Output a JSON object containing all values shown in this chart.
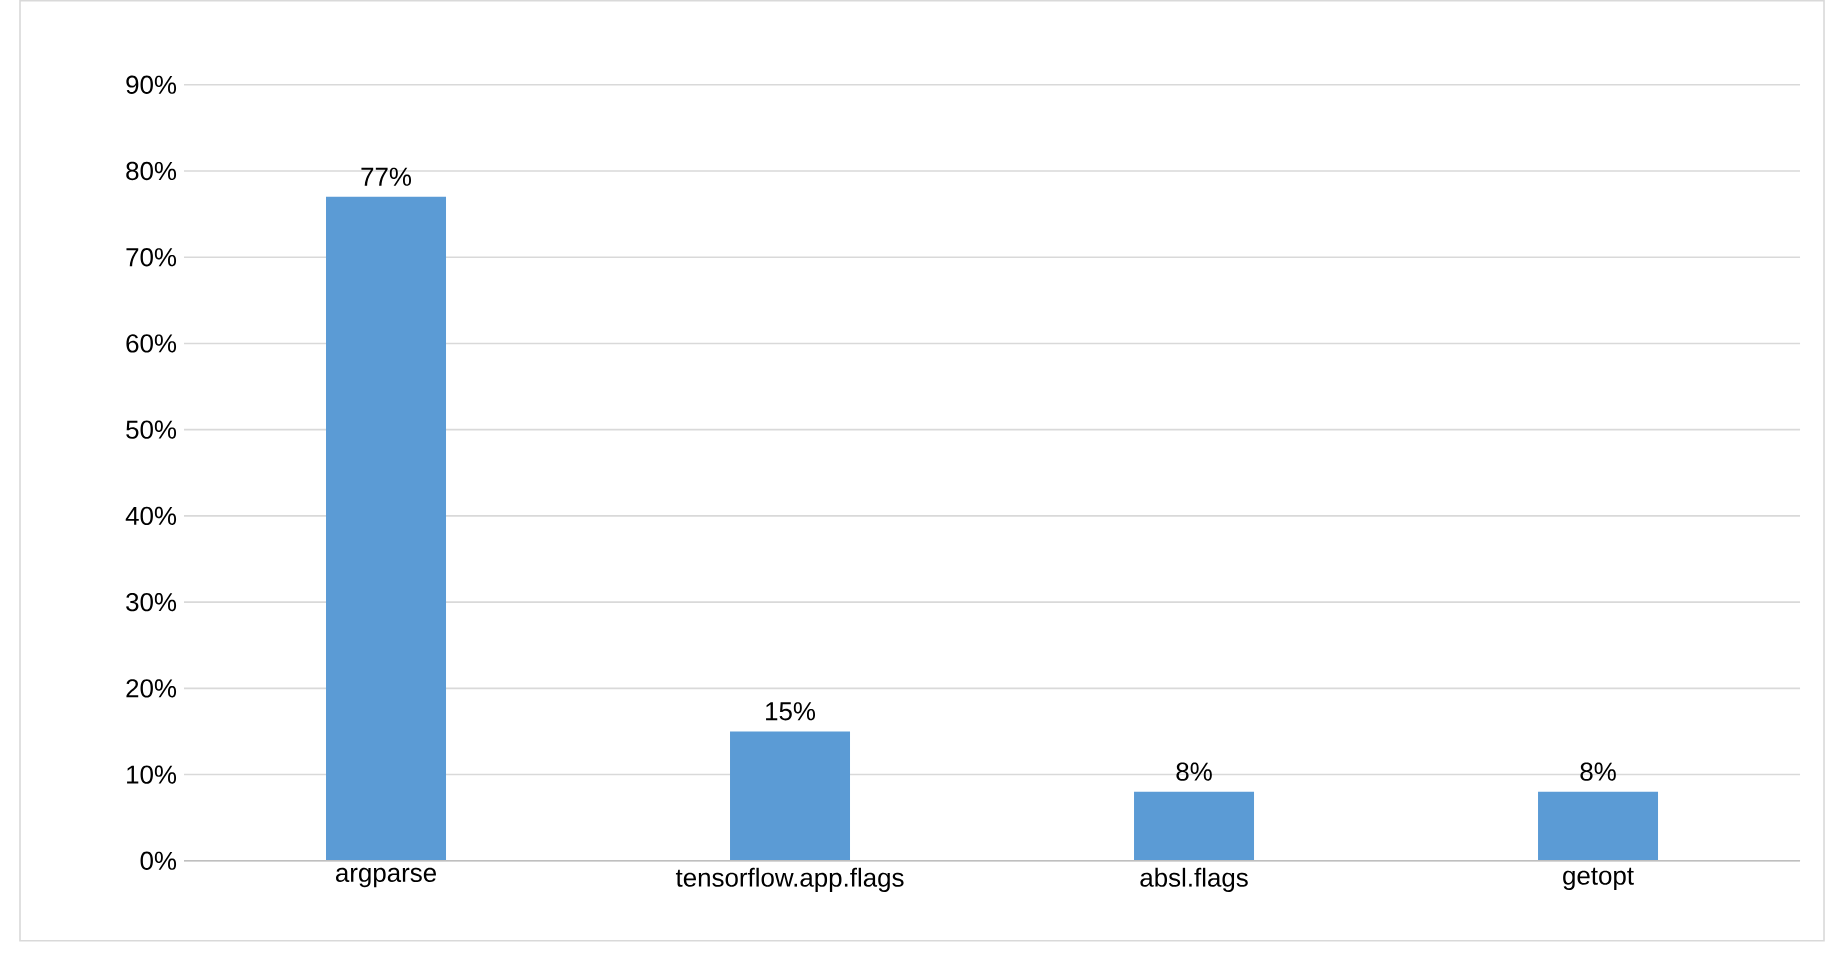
{
  "chart_data": {
    "type": "bar",
    "categories": [
      "argparse",
      "tensorflow.app.flags",
      "absl.flags",
      "getopt"
    ],
    "values": [
      77,
      15,
      8,
      8
    ],
    "value_labels": [
      "77%",
      "15%",
      "8%",
      "8%"
    ],
    "color": "#5b9bd5",
    "ylim": [
      0,
      90
    ],
    "yticks": [
      {
        "value": 0,
        "label": "0%"
      },
      {
        "value": 10,
        "label": "10%"
      },
      {
        "value": 20,
        "label": "20%"
      },
      {
        "value": 30,
        "label": "30%"
      },
      {
        "value": 40,
        "label": "40%"
      },
      {
        "value": 50,
        "label": "50%"
      },
      {
        "value": 60,
        "label": "60%"
      },
      {
        "value": 70,
        "label": "70%"
      },
      {
        "value": 80,
        "label": "80%"
      },
      {
        "value": 90,
        "label": "90%"
      }
    ],
    "grid": "y"
  }
}
